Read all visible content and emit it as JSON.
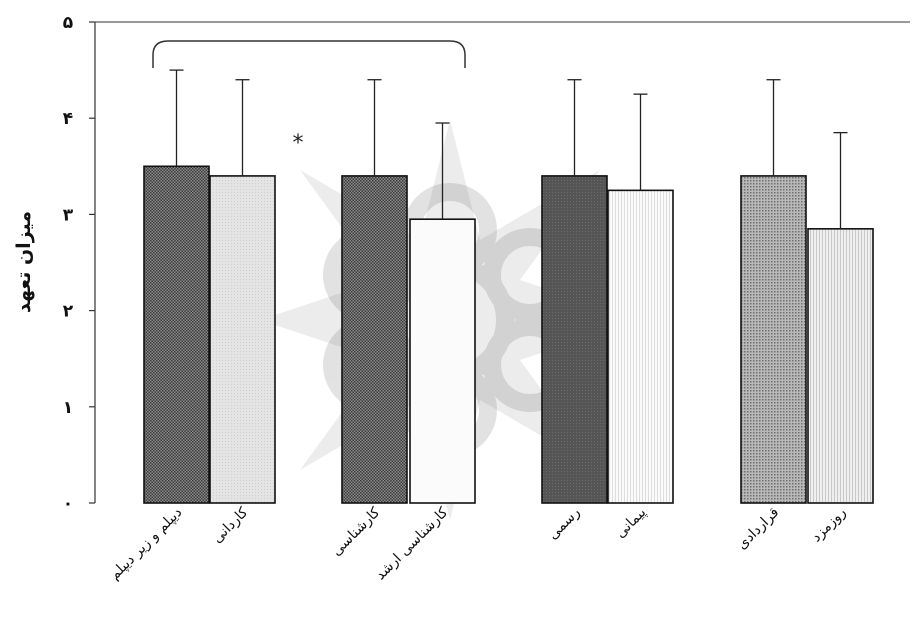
{
  "chart_data": {
    "type": "bar",
    "categories": [
      "دیپلم و زیر دیپلم",
      "کاردانی",
      "کارشناسی",
      "کارشناسی ارشد",
      "رسمی",
      "پیمانی",
      "قراردادی",
      "روزمزد"
    ],
    "values": [
      3.5,
      3.4,
      3.4,
      2.95,
      3.4,
      3.25,
      3.4,
      2.85
    ],
    "error_upper": [
      4.5,
      4.4,
      4.4,
      3.95,
      4.4,
      4.25,
      4.4,
      3.85
    ],
    "ylabel": "میزان تعهد",
    "ylim": [
      0,
      5
    ],
    "yticks": [
      0,
      1,
      2,
      3,
      4,
      5
    ],
    "ytick_labels": [
      "۰",
      "۱",
      "۲",
      "۳",
      "۴",
      "۵"
    ],
    "grid": false,
    "annotation": "*",
    "bar_styles": [
      "dark-check",
      "light",
      "dark-check",
      "white",
      "dark-solid",
      "white-stripe",
      "mid-dot",
      "light-stripe"
    ]
  }
}
